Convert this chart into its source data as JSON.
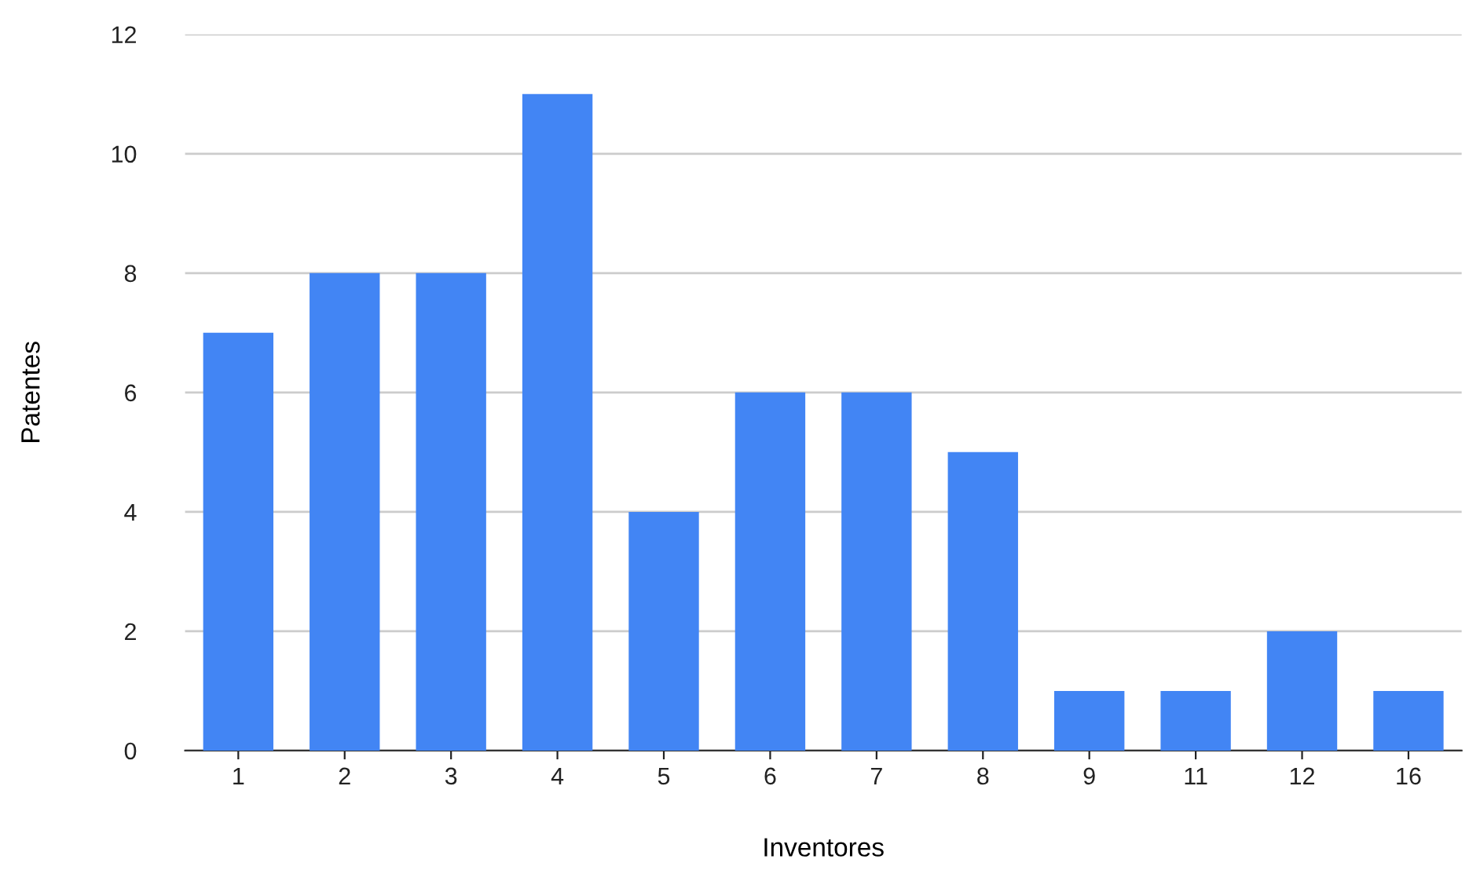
{
  "chart_data": {
    "type": "bar",
    "xlabel": "Inventores",
    "ylabel": "Patentes",
    "categories": [
      "1",
      "2",
      "3",
      "4",
      "5",
      "6",
      "7",
      "8",
      "9",
      "11",
      "12",
      "16"
    ],
    "values": [
      7,
      8,
      8,
      11,
      4,
      6,
      6,
      5,
      1,
      1,
      2,
      1
    ],
    "color": "#4285f4",
    "ylim": [
      0,
      12
    ],
    "yticks": [
      0,
      2,
      4,
      6,
      8,
      10,
      12
    ],
    "grid": "y"
  }
}
